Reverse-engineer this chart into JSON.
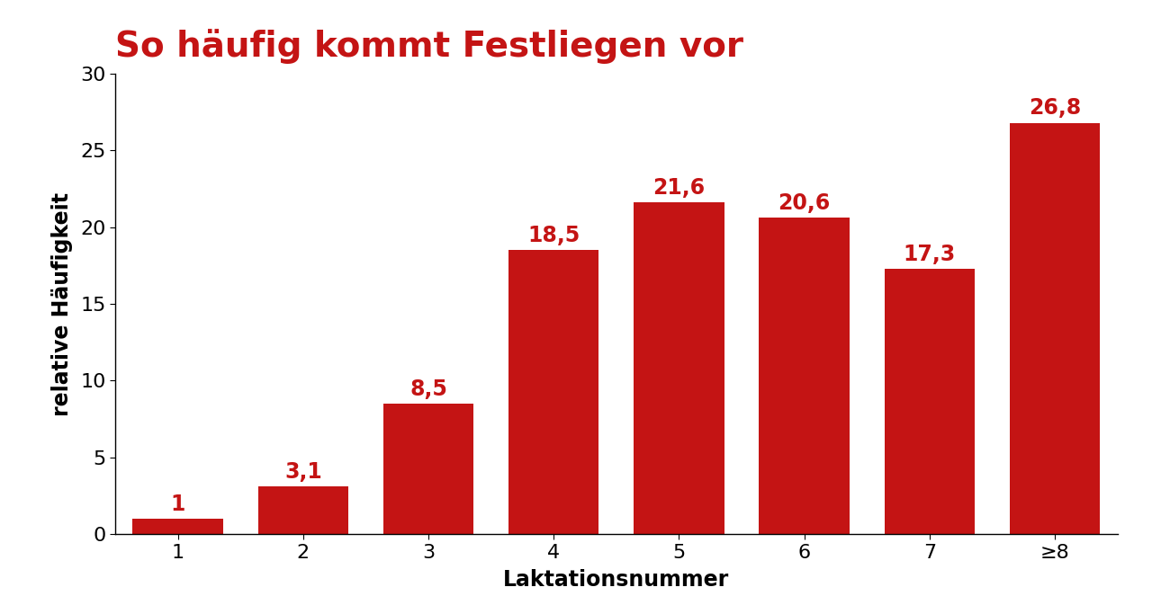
{
  "title": "So häufig kommt Festliegen vor",
  "xlabel": "Laktationsnummer",
  "ylabel": "relative Häufigkeit",
  "categories": [
    "1",
    "2",
    "3",
    "4",
    "5",
    "6",
    "7",
    "≥8"
  ],
  "values": [
    1.0,
    3.1,
    8.5,
    18.5,
    21.6,
    20.6,
    17.3,
    26.8
  ],
  "labels": [
    "1",
    "3,1",
    "8,5",
    "18,5",
    "21,6",
    "20,6",
    "17,3",
    "26,8"
  ],
  "bar_color": "#c41414",
  "title_color": "#c41414",
  "label_color": "#c41414",
  "text_color": "#000000",
  "background_color": "#ffffff",
  "ylim": [
    0,
    30
  ],
  "yticks": [
    0,
    5,
    10,
    15,
    20,
    25,
    30
  ],
  "title_fontsize": 28,
  "axis_label_fontsize": 17,
  "tick_label_fontsize": 16,
  "bar_label_fontsize": 17,
  "bar_width": 0.72
}
